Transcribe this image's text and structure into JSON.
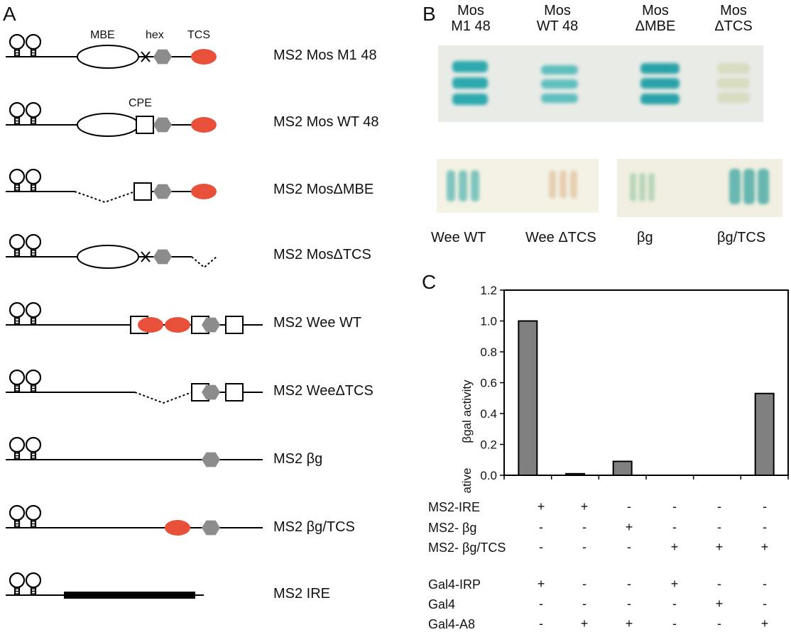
{
  "panels": {
    "a": "A",
    "b": "B",
    "c": "C"
  },
  "panel_a": {
    "element_labels": {
      "mbe": "MBE",
      "hex": "hex",
      "tcs": "TCS",
      "cpe": "CPE"
    },
    "constructs": [
      "MS2 Mos M1 48",
      "MS2 Mos WT 48",
      "MS2 MosΔMBE",
      "MS2 MosΔTCS",
      "MS2 Wee WT",
      "MS2 WeeΔTCS",
      "MS2 βg",
      "MS2  βg/TCS",
      "MS2 IRE"
    ],
    "colors": {
      "tcs": "#e8503a",
      "hex": "#8c8c8c"
    }
  },
  "panel_b": {
    "top_lanes": [
      {
        "line1": "Mos",
        "line2": "M1 48"
      },
      {
        "line1": "Mos",
        "line2": "WT 48"
      },
      {
        "line1": "Mos",
        "line2": "ΔMBE"
      },
      {
        "line1": "Mos",
        "line2": "ΔTCS"
      }
    ],
    "bottom_lanes": [
      "Wee WT",
      "Wee ΔTCS",
      "βg",
      "βg/TCS"
    ]
  },
  "chart_data": {
    "type": "bar",
    "ylabel_line1": "relative",
    "ylabel_line2": "βgal activity",
    "ylim": [
      0,
      1.2
    ],
    "yticks": [
      "0.0",
      "0.2",
      "0.4",
      "0.6",
      "0.8",
      "1.0",
      "1.2"
    ],
    "values": [
      1.0,
      0.01,
      0.09,
      0.0,
      0.0,
      0.53
    ],
    "bar_color": "#808080",
    "grid": false
  },
  "panel_c_table": {
    "rows": [
      {
        "label": "MS2-IRE",
        "values": [
          "+",
          "+",
          "-",
          "-",
          "-",
          "-"
        ]
      },
      {
        "label": "MS2- βg",
        "values": [
          "-",
          "-",
          "+",
          "-",
          "-",
          "-"
        ]
      },
      {
        "label": "MS2- βg/TCS",
        "values": [
          "-",
          "-",
          "-",
          "+",
          "+",
          "+"
        ]
      },
      {
        "label": "Gal4-IRP",
        "values": [
          "+",
          "-",
          "-",
          "+",
          "-",
          "-"
        ]
      },
      {
        "label": "Gal4",
        "values": [
          "-",
          "-",
          "-",
          "-",
          "+",
          "-"
        ]
      },
      {
        "label": "Gal4-A8",
        "values": [
          "-",
          "+",
          "+",
          "-",
          "-",
          "+"
        ]
      }
    ]
  }
}
